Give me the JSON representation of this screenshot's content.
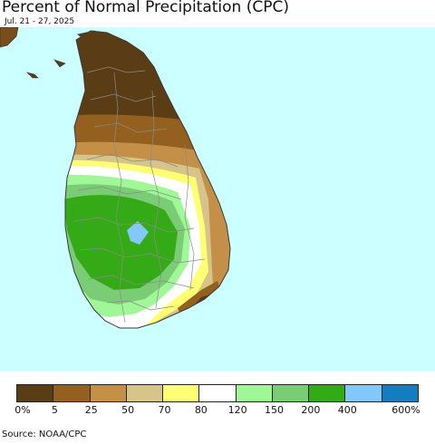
{
  "header": {
    "title": "Percent of Normal Precipitation (CPC)",
    "subtitle": "Jul. 21 - 27, 2025"
  },
  "map": {
    "ocean_color": "#ccffff",
    "land_outline_color": "#3a3a3a",
    "boundary_color": "#8a8a8a"
  },
  "legend": {
    "categories": [
      {
        "color": "#5a3d14"
      },
      {
        "color": "#94601f"
      },
      {
        "color": "#c49048"
      },
      {
        "color": "#d6c48a"
      },
      {
        "color": "#ffff73"
      },
      {
        "color": "#ffffff"
      },
      {
        "color": "#a0f797"
      },
      {
        "color": "#7acd74"
      },
      {
        "color": "#35aa17"
      },
      {
        "color": "#84c7fa"
      },
      {
        "color": "#157dbd"
      }
    ],
    "labels": [
      "0%",
      "5",
      "25",
      "50",
      "70",
      "80",
      "120",
      "150",
      "200",
      "400",
      "600%"
    ]
  },
  "footer": {
    "source": "Source: NOAA/CPC"
  }
}
